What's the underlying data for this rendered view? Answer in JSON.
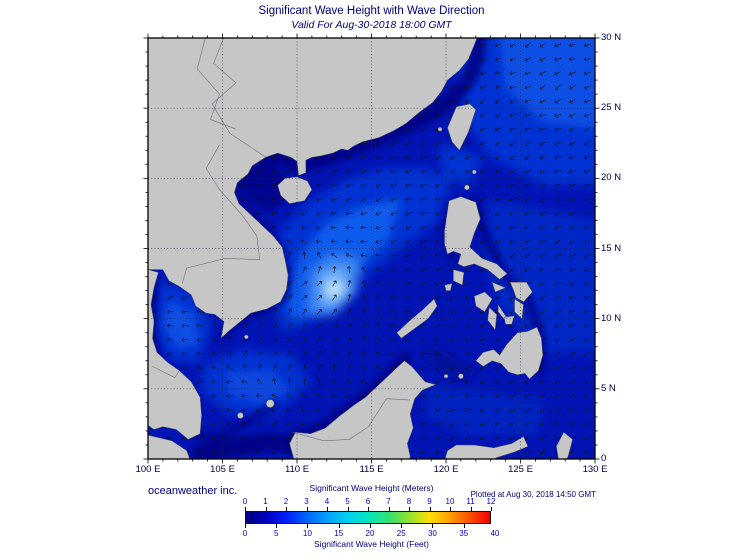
{
  "header": {
    "title": "Significant Wave Height with Wave Direction",
    "subtitle": "Valid For Aug-30-2018 18:00 GMT"
  },
  "map": {
    "x_tick_labels": [
      "100 E",
      "105 E",
      "110 E",
      "115 E",
      "120 E",
      "125 E",
      "130 E"
    ],
    "y_tick_labels": [
      "30 N",
      "25 N",
      "20 N",
      "15 N",
      "10 N",
      "5 N",
      "0"
    ],
    "lon_min": 100,
    "lon_max": 130,
    "lat_min": 0,
    "lat_max": 30,
    "ocean_base_color": "#0014b4",
    "land_color": "#c6c6c6"
  },
  "footer": {
    "credit": "oceanweather inc.",
    "plotted_at": "Plotted at Aug 30, 2018 14:50 GMT"
  },
  "legend": {
    "meters_label": "Significant Wave Height (Meters)",
    "feet_label": "Significant Wave Height (Feet)",
    "meters_ticks": [
      "0",
      "1",
      "2",
      "3",
      "4",
      "5",
      "6",
      "7",
      "8",
      "9",
      "10",
      "11",
      "12"
    ],
    "feet_ticks": [
      "0",
      "5",
      "10",
      "15",
      "20",
      "25",
      "30",
      "35",
      "40"
    ],
    "gradient_colors": [
      "#000080",
      "#0000c0",
      "#0020ff",
      "#0064ff",
      "#00a0ff",
      "#00d0f0",
      "#00e8c0",
      "#30e070",
      "#90e030",
      "#ffe000",
      "#ffa000",
      "#ff5000",
      "#f00000"
    ]
  }
}
